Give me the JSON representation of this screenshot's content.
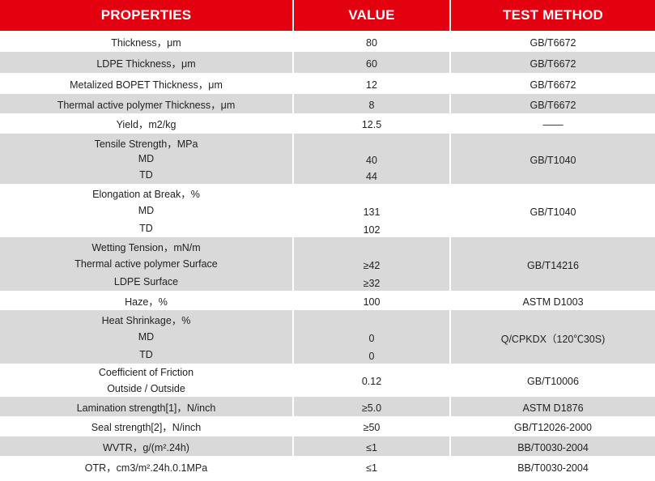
{
  "header": {
    "col1": "PROPERTIES",
    "col2": "VALUE",
    "col3": "TEST METHOD"
  },
  "rows": [
    {
      "lines": [
        "Thickness，μm"
      ],
      "values": [
        "80"
      ],
      "method": "GB/T6672"
    },
    {
      "lines": [
        "LDPE Thickness，μm"
      ],
      "values": [
        "60"
      ],
      "method": "GB/T6672"
    },
    {
      "lines": [
        "Metalized BOPET Thickness，μm"
      ],
      "values": [
        "12"
      ],
      "method": "GB/T6672"
    },
    {
      "lines": [
        "Thermal active polymer Thickness，μm"
      ],
      "values": [
        "8"
      ],
      "method": "GB/T6672"
    },
    {
      "lines": [
        "Yield，m2/kg"
      ],
      "values": [
        "12.5"
      ],
      "method": "——"
    },
    {
      "lines": [
        "Tensile Strength，MPa",
        "MD",
        "TD"
      ],
      "values": [
        "",
        "40",
        "44"
      ],
      "method": "GB/T1040"
    },
    {
      "lines": [
        "Elongation at Break，%",
        "MD",
        "TD"
      ],
      "values": [
        "",
        "131",
        "102"
      ],
      "method": "GB/T1040"
    },
    {
      "lines": [
        "Wetting Tension，mN/m",
        "Thermal active polymer Surface",
        "LDPE Surface"
      ],
      "values": [
        "",
        "≥42",
        "≥32"
      ],
      "method": "GB/T14216"
    },
    {
      "lines": [
        "Haze，%"
      ],
      "values": [
        "100"
      ],
      "method": "ASTM D1003"
    },
    {
      "lines": [
        "Heat Shrinkage，%",
        "MD",
        "TD"
      ],
      "values": [
        "",
        "0",
        "0"
      ],
      "method": "Q/CPKDX（120℃30S)"
    },
    {
      "lines": [
        "Coefficient of Friction",
        "Outside / Outside"
      ],
      "values": [
        "0.12"
      ],
      "method": "GB/T10006"
    },
    {
      "lines": [
        "Lamination strength[1]，N/inch"
      ],
      "values": [
        "≥5.0"
      ],
      "method": "ASTM D1876"
    },
    {
      "lines": [
        "Seal strength[2]，N/inch"
      ],
      "values": [
        "≥50"
      ],
      "method": "GB/T12026-2000"
    },
    {
      "lines": [
        "WVTR，g/(m².24h)"
      ],
      "values": [
        "≤1"
      ],
      "method": "BB/T0030-2004"
    },
    {
      "lines": [
        "OTR，cm3/m².24h.0.1MPa"
      ],
      "values": [
        "≤1"
      ],
      "method": "BB/T0030-2004"
    }
  ]
}
